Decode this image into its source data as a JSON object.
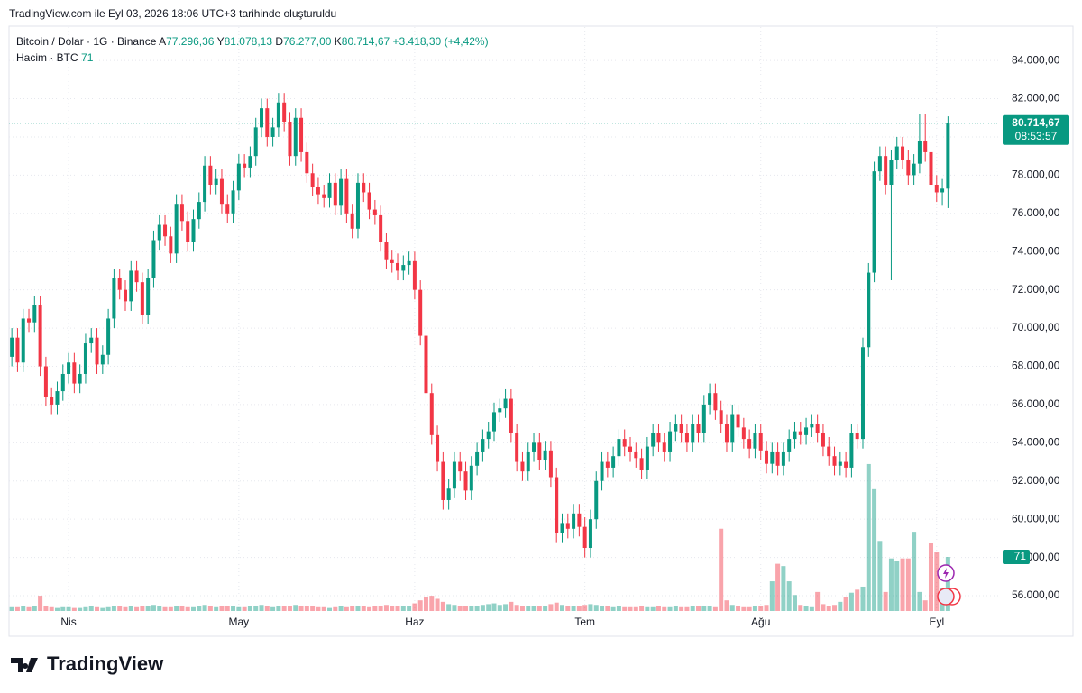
{
  "caption": "TradingView.com ile Eyl 03, 2026 18:06 UTC+3 tarihinde oluşturuldu",
  "brand": "TradingView",
  "chart_data": {
    "type": "candlestick",
    "title": "Bitcoin / Dolar · 1G · Binance",
    "legend": {
      "open_label": "A",
      "open": "77.296,36",
      "high_label": "Y",
      "high": "81.078,13",
      "low_label": "D",
      "low": "76.277,00",
      "close_label": "K",
      "close": "80.714,67",
      "change": "+3.418,30 (+4,42%)"
    },
    "volume_title": "Hacim · BTC",
    "volume_last": 71,
    "last_price_label": "80.714,67",
    "countdown": "08:53:57",
    "up_color": "#089981",
    "down_color": "#f23645",
    "xlim": [
      -0.5,
      174
    ],
    "ylim": [
      55200,
      85750
    ],
    "volume_ylim": [
      0,
      767
    ],
    "grid": true,
    "xticks": [
      {
        "value": 10,
        "label": "Nis"
      },
      {
        "value": 40,
        "label": "May"
      },
      {
        "value": 71,
        "label": "Haz"
      },
      {
        "value": 101,
        "label": "Tem"
      },
      {
        "value": 132,
        "label": "Ağu"
      },
      {
        "value": 163,
        "label": "Eyl"
      }
    ],
    "yticks": [
      {
        "value": 56000,
        "label": "56.000,00"
      },
      {
        "value": 58000,
        "label": "58.000,00"
      },
      {
        "value": 60000,
        "label": "60.000,00"
      },
      {
        "value": 62000,
        "label": "62.000,00"
      },
      {
        "value": 64000,
        "label": "64.000,00"
      },
      {
        "value": 66000,
        "label": "66.000,00"
      },
      {
        "value": 68000,
        "label": "68.000,00"
      },
      {
        "value": 70000,
        "label": "70.000,00"
      },
      {
        "value": 72000,
        "label": "72.000,00"
      },
      {
        "value": 74000,
        "label": "74.000,00"
      },
      {
        "value": 76000,
        "label": "76.000,00"
      },
      {
        "value": 78000,
        "label": "78.000,00"
      },
      {
        "value": 80000,
        "label": "80.000,00"
      },
      {
        "value": 82000,
        "label": "82.000,00"
      },
      {
        "value": 84000,
        "label": "84.000,00"
      }
    ],
    "open": [
      68500,
      69500,
      68200,
      70500,
      70300,
      71200,
      68000,
      66400,
      66000,
      66700,
      67600,
      68200,
      67100,
      67600,
      69200,
      69500,
      68100,
      68600,
      70500,
      72600,
      72000,
      71400,
      73000,
      72400,
      70700,
      72600,
      74600,
      75400,
      74800,
      73900,
      76500,
      75600,
      74500,
      75700,
      76600,
      78500,
      77500,
      77800,
      76500,
      76000,
      77200,
      78600,
      78400,
      79000,
      80500,
      81500,
      80000,
      80500,
      81800,
      80800,
      79000,
      81000,
      79200,
      78100,
      77400,
      77000,
      76800,
      77600,
      76400,
      77800,
      76000,
      75200,
      77600,
      77100,
      76200,
      75900,
      74500,
      73600,
      73400,
      73000,
      73300,
      73500,
      72000,
      69600,
      66600,
      64400,
      63000,
      61000,
      61600,
      63000,
      62500,
      61500,
      62800,
      63500,
      64200,
      64600,
      65600,
      65800,
      66300,
      64500,
      63000,
      62500,
      63500,
      64000,
      63100,
      63600,
      62200,
      59300,
      59800,
      59500,
      60300,
      59600,
      58500,
      60000,
      62000,
      63000,
      62700,
      63300,
      64200,
      63800,
      63500,
      63200,
      62600,
      63800,
      64500,
      64000,
      63500,
      64600,
      65000,
      64500,
      64000,
      65000,
      64500,
      66000,
      66600,
      65700,
      65000,
      64000,
      65500,
      64800,
      64200,
      63700,
      64500,
      63600,
      62900,
      63500,
      62800,
      63500,
      64200,
      64600,
      64400,
      64800,
      65000,
      64500,
      63800,
      63300,
      62800,
      63000,
      62700,
      64500,
      64200,
      69000,
      72900,
      78200,
      79000,
      77500,
      78800,
      79500,
      78800,
      78000,
      78600,
      79800,
      79200,
      77500,
      77100,
      77296.36
    ],
    "high": [
      70000,
      70000,
      71000,
      71000,
      71700,
      71700,
      68500,
      66900,
      67200,
      68100,
      68700,
      68700,
      68100,
      69700,
      70000,
      70000,
      69100,
      71000,
      73100,
      73100,
      72500,
      73500,
      73500,
      72900,
      73100,
      75100,
      75900,
      75900,
      75300,
      77000,
      77000,
      76100,
      76200,
      77100,
      79000,
      79000,
      78300,
      78300,
      77000,
      77700,
      79100,
      79100,
      79500,
      81000,
      82000,
      82000,
      81000,
      82300,
      82300,
      81300,
      81500,
      81500,
      79700,
      78600,
      77900,
      77500,
      78100,
      78100,
      78300,
      78300,
      76500,
      78100,
      78100,
      77600,
      76700,
      76400,
      75000,
      74100,
      73900,
      73800,
      74000,
      74000,
      72500,
      70100,
      67100,
      64900,
      63500,
      62100,
      63500,
      63500,
      63000,
      63300,
      64000,
      64700,
      65100,
      66100,
      66300,
      66800,
      66800,
      65000,
      63500,
      64000,
      64500,
      64500,
      64100,
      64100,
      62700,
      60300,
      60300,
      60800,
      60800,
      60100,
      60500,
      62500,
      63500,
      63500,
      63800,
      64700,
      64700,
      64300,
      64000,
      63700,
      64300,
      65000,
      65000,
      64500,
      65100,
      65500,
      65500,
      65000,
      65500,
      65500,
      66500,
      67100,
      67100,
      66200,
      65500,
      66000,
      66000,
      65300,
      64700,
      65000,
      65000,
      64100,
      64000,
      64000,
      64000,
      64700,
      65100,
      65100,
      65300,
      65500,
      65500,
      65000,
      64300,
      63800,
      63500,
      63500,
      65000,
      65000,
      69500,
      73400,
      78700,
      79500,
      79500,
      79300,
      80000,
      80000,
      79300,
      79100,
      81200,
      81200,
      79700,
      78000,
      77800,
      81078.13
    ],
    "low": [
      68000,
      67700,
      67700,
      69800,
      69800,
      67500,
      65900,
      65500,
      65500,
      66200,
      67100,
      66600,
      66600,
      67100,
      68700,
      67600,
      67600,
      68100,
      70000,
      71500,
      70900,
      70900,
      71900,
      70200,
      70200,
      72100,
      74100,
      74300,
      73400,
      73400,
      75100,
      74000,
      74000,
      75200,
      76100,
      77000,
      77000,
      76000,
      75500,
      75500,
      76700,
      77900,
      77900,
      78500,
      80000,
      79500,
      79500,
      80000,
      80300,
      78500,
      78500,
      78700,
      77600,
      76900,
      76500,
      76300,
      76300,
      75900,
      75900,
      75500,
      74700,
      74700,
      76600,
      75700,
      75400,
      74000,
      73100,
      72900,
      72500,
      72500,
      72800,
      71500,
      69100,
      66100,
      63900,
      62500,
      60500,
      60500,
      61100,
      62000,
      61000,
      61000,
      62300,
      63000,
      63700,
      64100,
      65100,
      65300,
      64000,
      62500,
      62000,
      62000,
      63000,
      62600,
      62600,
      61700,
      58800,
      58800,
      59000,
      59000,
      59100,
      58000,
      58000,
      59500,
      61500,
      62200,
      62200,
      62800,
      63300,
      63000,
      62700,
      62100,
      62100,
      63300,
      63500,
      63000,
      63000,
      64100,
      64000,
      63500,
      63500,
      64000,
      64000,
      65500,
      65200,
      64500,
      63500,
      63500,
      64300,
      63700,
      63200,
      63200,
      63100,
      62400,
      62400,
      62300,
      62300,
      63000,
      63700,
      63900,
      63900,
      64300,
      64000,
      63300,
      62800,
      62300,
      62300,
      62200,
      62200,
      63700,
      63700,
      68500,
      72400,
      77700,
      77000,
      72500,
      78300,
      78300,
      77500,
      77500,
      78100,
      78700,
      77000,
      76600,
      76400,
      76277
    ],
    "close": [
      69500,
      68200,
      70500,
      70300,
      71200,
      68000,
      66400,
      66000,
      66700,
      67600,
      68200,
      67100,
      67600,
      69200,
      69500,
      68100,
      68600,
      70500,
      72600,
      72000,
      71400,
      73000,
      72400,
      70700,
      72600,
      74600,
      75400,
      74800,
      73900,
      76500,
      75600,
      74500,
      75700,
      76600,
      78500,
      77500,
      77800,
      76500,
      76000,
      77200,
      78600,
      78400,
      79000,
      80500,
      81500,
      80000,
      80500,
      81800,
      80800,
      79000,
      81000,
      79200,
      78100,
      77400,
      77000,
      76800,
      77600,
      76400,
      77800,
      76000,
      75200,
      77600,
      77100,
      76200,
      75900,
      74500,
      73600,
      73400,
      73000,
      73300,
      73500,
      72000,
      69600,
      66600,
      64400,
      63000,
      61000,
      61600,
      63000,
      62500,
      61500,
      62800,
      63500,
      64200,
      64600,
      65600,
      65800,
      66300,
      64500,
      63000,
      62500,
      63500,
      64000,
      63100,
      63600,
      62200,
      59300,
      59800,
      59500,
      60300,
      59600,
      58500,
      60000,
      62000,
      63000,
      62700,
      63300,
      64200,
      63800,
      63500,
      63200,
      62600,
      63800,
      64500,
      64000,
      63500,
      64600,
      65000,
      64500,
      64000,
      65000,
      64500,
      66000,
      66600,
      65700,
      65000,
      64000,
      65500,
      64800,
      64200,
      63700,
      64500,
      63600,
      62900,
      63500,
      62800,
      63500,
      64200,
      64600,
      64400,
      64800,
      65000,
      64500,
      63800,
      63300,
      62800,
      63000,
      62700,
      64500,
      64200,
      69000,
      72900,
      78200,
      79000,
      77500,
      78800,
      79500,
      78800,
      78000,
      78600,
      79800,
      79200,
      77500,
      77100,
      77296.36,
      80714.67
    ],
    "volume": [
      5,
      5,
      6,
      5,
      6,
      20,
      7,
      5,
      4,
      5,
      5,
      4,
      4,
      5,
      6,
      5,
      4,
      5,
      7,
      6,
      5,
      6,
      5,
      7,
      6,
      8,
      6,
      5,
      5,
      7,
      6,
      5,
      5,
      6,
      8,
      6,
      5,
      6,
      7,
      6,
      5,
      5,
      6,
      7,
      8,
      6,
      5,
      7,
      6,
      7,
      8,
      6,
      7,
      6,
      5,
      5,
      4,
      5,
      6,
      5,
      6,
      7,
      6,
      5,
      6,
      7,
      8,
      6,
      6,
      7,
      6,
      10,
      14,
      18,
      20,
      16,
      12,
      9,
      8,
      7,
      6,
      6,
      7,
      8,
      9,
      10,
      8,
      9,
      12,
      8,
      7,
      6,
      6,
      7,
      6,
      9,
      11,
      8,
      7,
      6,
      7,
      8,
      9,
      8,
      7,
      6,
      5,
      6,
      5,
      5,
      5,
      6,
      5,
      5,
      6,
      5,
      5,
      6,
      5,
      5,
      6,
      7,
      7,
      6,
      5,
      108,
      14,
      8,
      6,
      5,
      5,
      6,
      6,
      8,
      39,
      62,
      59,
      39,
      21,
      8,
      6,
      5,
      25,
      9,
      7,
      8,
      12,
      18,
      24,
      28,
      32,
      193,
      160,
      92,
      25,
      69,
      66,
      69,
      69,
      104,
      25,
      14,
      89,
      78,
      30,
      71
    ]
  }
}
